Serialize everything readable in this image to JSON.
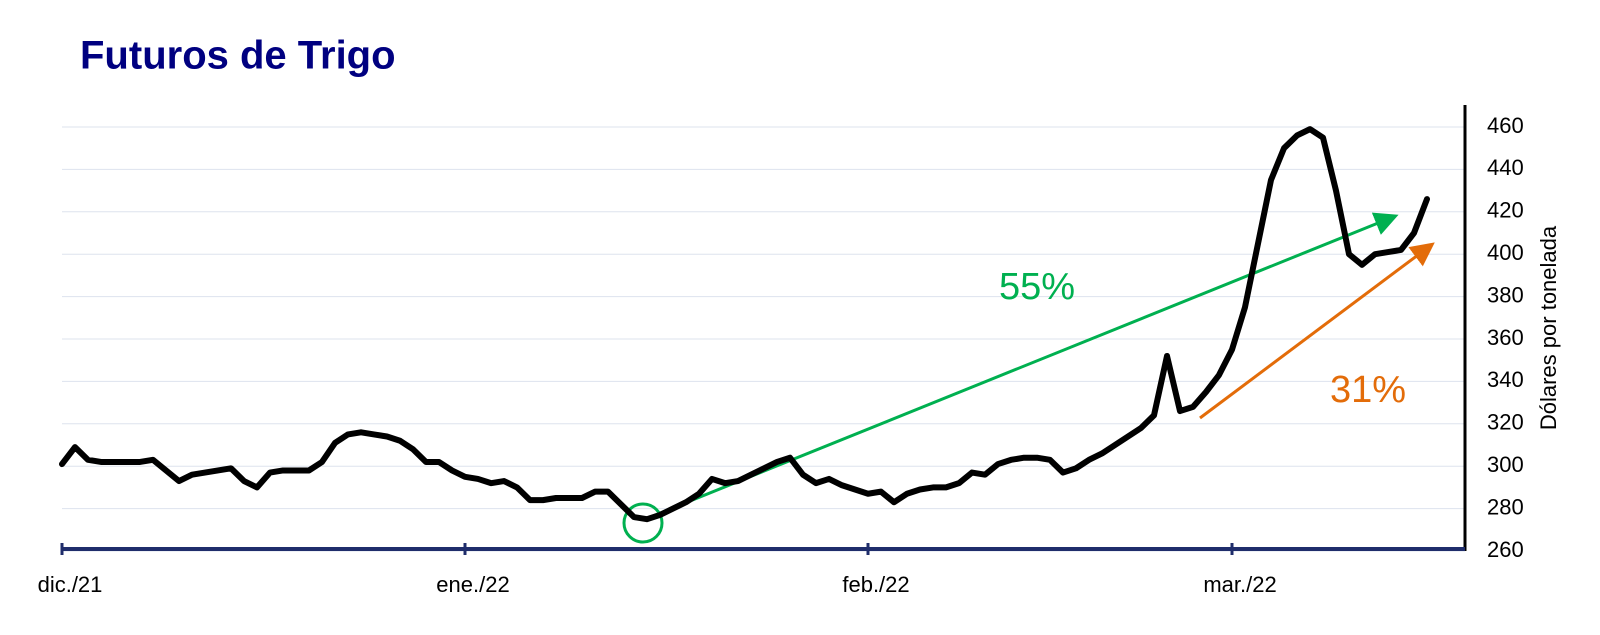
{
  "chart_data": {
    "type": "line",
    "title": "Futuros de Trigo",
    "y_label": "Dólares por tonelada",
    "categories": [
      "dic./21",
      null,
      null,
      null,
      null,
      null,
      null,
      null,
      null,
      null,
      null,
      null,
      null,
      null,
      null,
      null,
      null,
      null,
      null,
      null,
      null,
      null,
      null,
      null,
      null,
      null,
      null,
      null,
      null,
      null,
      null,
      "ene./22",
      null,
      null,
      null,
      null,
      null,
      null,
      null,
      null,
      null,
      null,
      null,
      null,
      null,
      null,
      null,
      null,
      null,
      null,
      null,
      null,
      null,
      null,
      null,
      null,
      null,
      null,
      null,
      null,
      null,
      null,
      "feb./22",
      null,
      null,
      null,
      null,
      null,
      null,
      null,
      null,
      null,
      null,
      null,
      null,
      null,
      null,
      null,
      null,
      null,
      null,
      null,
      null,
      null,
      null,
      null,
      null,
      null,
      null,
      null,
      "mar./22",
      null,
      null,
      null,
      null,
      null,
      null,
      null,
      null,
      null,
      null,
      null,
      null,
      null,
      null,
      null
    ],
    "values": [
      301,
      309,
      303,
      302,
      302,
      302,
      302,
      303,
      298,
      293,
      296,
      297,
      298,
      299,
      293,
      290,
      297,
      298,
      298,
      298,
      302,
      311,
      315,
      316,
      315,
      314,
      312,
      308,
      302,
      302,
      298,
      295,
      294,
      292,
      293,
      290,
      284,
      284,
      285,
      285,
      285,
      288,
      288,
      282,
      276,
      275,
      277,
      280,
      283,
      287,
      294,
      292,
      293,
      296,
      299,
      302,
      304,
      296,
      292,
      294,
      291,
      289,
      287,
      288,
      283,
      287,
      289,
      290,
      290,
      292,
      297,
      296,
      301,
      303,
      304,
      304,
      303,
      297,
      299,
      303,
      306,
      310,
      314,
      318,
      324,
      352,
      326,
      328,
      335,
      343,
      355,
      375,
      405,
      435,
      450,
      456,
      459,
      455,
      430,
      400,
      395,
      400,
      401,
      402,
      410,
      426
    ],
    "color": "#000000",
    "ylim": [
      260,
      460
    ],
    "yticks": [
      260,
      280,
      300,
      320,
      340,
      360,
      380,
      400,
      420,
      440,
      460
    ],
    "grid": true,
    "annotations": [
      "55%",
      "31%"
    ]
  }
}
